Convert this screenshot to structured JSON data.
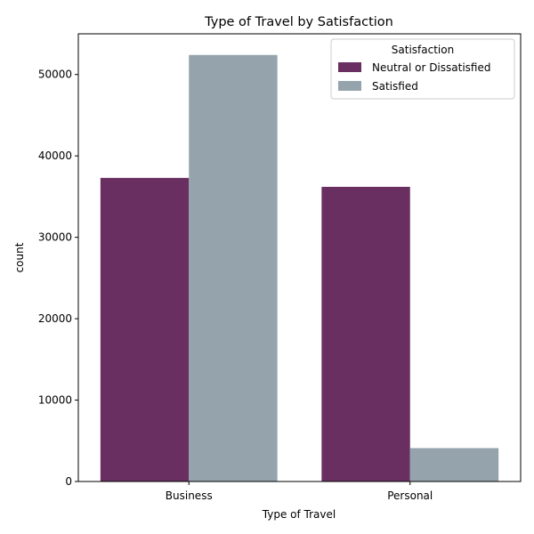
{
  "chart_data": {
    "type": "bar",
    "title": "Type of Travel by Satisfaction",
    "xlabel": "Type of Travel",
    "ylabel": "count",
    "categories": [
      "Business",
      "Personal"
    ],
    "series": [
      {
        "name": "Neutral or Dissatisfied",
        "values": [
          37300,
          36200
        ],
        "color": "#692f60"
      },
      {
        "name": "Satisfied",
        "values": [
          52400,
          4100
        ],
        "color": "#95a3ad"
      }
    ],
    "ylim": [
      0,
      55000
    ],
    "yticks": [
      0,
      10000,
      20000,
      30000,
      40000,
      50000
    ],
    "legend": {
      "title": "Satisfaction",
      "placement": "top-right"
    },
    "grid": false
  }
}
